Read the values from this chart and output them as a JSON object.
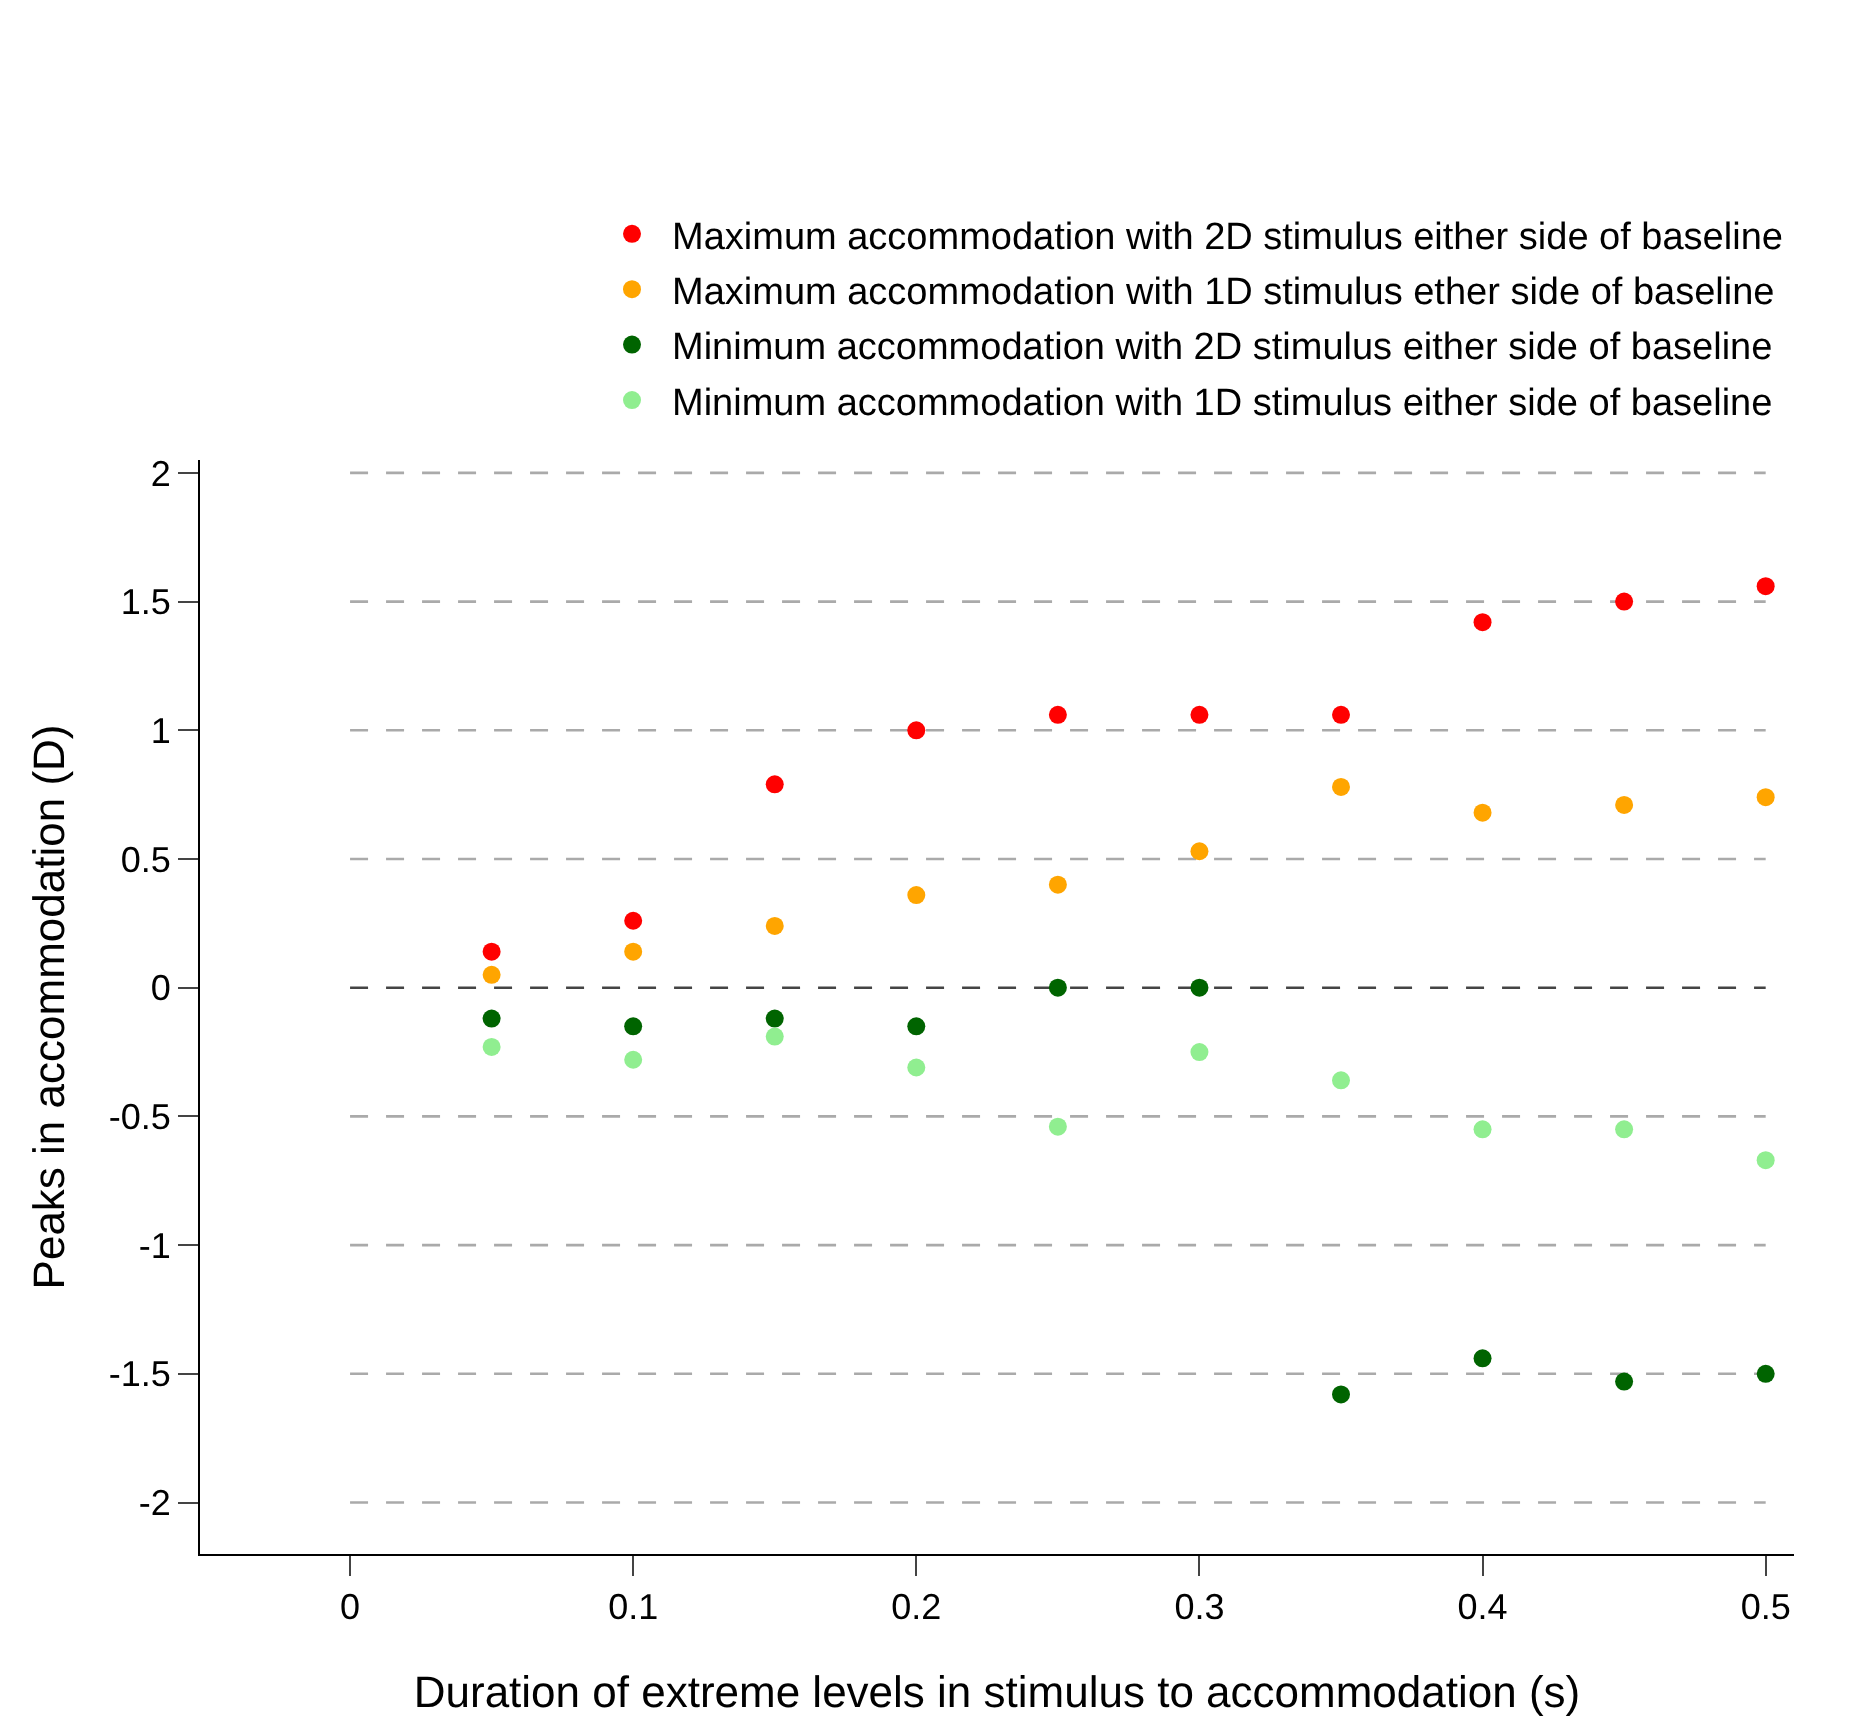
{
  "chart_data": {
    "type": "scatter",
    "xlabel": "Duration of extreme levels in stimulus to accommodation (s)",
    "ylabel": "Peaks in accommodation (D)",
    "x": [
      0.05,
      0.1,
      0.15,
      0.2,
      0.25,
      0.3,
      0.35,
      0.4,
      0.45,
      0.5
    ],
    "series": [
      {
        "name": "Maximum accommodation with 2D stimulus either side of baseline",
        "color": "#ff0000",
        "values": [
          0.14,
          0.26,
          0.79,
          1.0,
          1.06,
          1.06,
          1.06,
          1.42,
          1.5,
          1.56
        ]
      },
      {
        "name": "Maximum accommodation with 1D stimulus ether side of baseline",
        "color": "#ffa500",
        "values": [
          0.05,
          0.14,
          0.24,
          0.36,
          0.4,
          0.53,
          0.78,
          0.68,
          0.71,
          0.74
        ]
      },
      {
        "name": "Minimum accommodation with 2D stimulus either side of baseline",
        "color": "#006400",
        "values": [
          -0.12,
          -0.15,
          -0.12,
          -0.15,
          0.0,
          0.0,
          -1.58,
          -1.44,
          -1.53,
          -1.5
        ]
      },
      {
        "name": "Minimum accommodation with 1D stimulus either side of baseline",
        "color": "#90ee90",
        "values": [
          -0.23,
          -0.28,
          -0.19,
          -0.31,
          -0.54,
          -0.25,
          -0.36,
          -0.55,
          -0.55,
          -0.67
        ]
      }
    ],
    "xlim": [
      -0.053,
      0.51
    ],
    "ylim": [
      -2.2,
      2.05
    ],
    "xticks": [
      0,
      0.1,
      0.2,
      0.3,
      0.4,
      0.5
    ],
    "yticks": [
      -2,
      -1.5,
      -1,
      -0.5,
      0,
      0.5,
      1,
      1.5,
      2
    ],
    "ref_lines": [
      {
        "axis": "y",
        "value": 2,
        "color": "#aaaaaa",
        "line_style": "dashed"
      },
      {
        "axis": "y",
        "value": 1.5,
        "color": "#aaaaaa",
        "line_style": "dashed"
      },
      {
        "axis": "y",
        "value": 1,
        "color": "#aaaaaa",
        "line_style": "dashed"
      },
      {
        "axis": "y",
        "value": 0.5,
        "color": "#aaaaaa",
        "line_style": "dashed"
      },
      {
        "axis": "y",
        "value": 0,
        "color": "#444444",
        "line_style": "dashed"
      },
      {
        "axis": "y",
        "value": -0.5,
        "color": "#aaaaaa",
        "line_style": "dashed"
      },
      {
        "axis": "y",
        "value": -1,
        "color": "#aaaaaa",
        "line_style": "dashed"
      },
      {
        "axis": "y",
        "value": -1.5,
        "color": "#aaaaaa",
        "line_style": "dashed"
      },
      {
        "axis": "y",
        "value": -2,
        "color": "#aaaaaa",
        "line_style": "dashed"
      }
    ],
    "marker": "circle",
    "legend": "top",
    "grid": false
  }
}
